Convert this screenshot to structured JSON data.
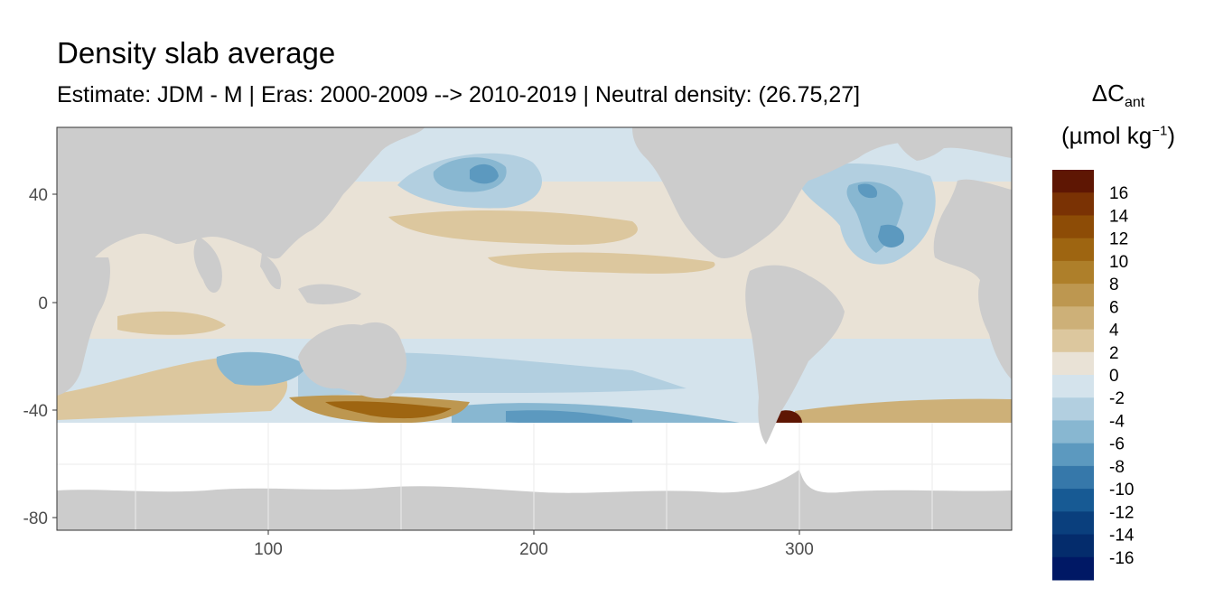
{
  "title": "Density slab average",
  "subtitle": "Estimate: JDM - M | Eras: 2000-2009 --> 2010-2019 | Neutral density: (26.75,27]",
  "legend": {
    "title_main": "ΔC",
    "title_sub": "ant",
    "unit_prefix": "(µmol kg",
    "unit_sup": "−1",
    "unit_suffix": ")",
    "levels": [
      "16",
      "14",
      "12",
      "10",
      "8",
      "6",
      "4",
      "2",
      "0",
      "-2",
      "-4",
      "-6",
      "-8",
      "-10",
      "-12",
      "-14",
      "-16"
    ],
    "colors": [
      "#5e1603",
      "#7a3204",
      "#8d4c06",
      "#9e6511",
      "#ae7f2a",
      "#bd9750",
      "#cdb078",
      "#dcc79e",
      "#e9e2d6",
      "#d4e3ec",
      "#b2cfe0",
      "#88b7d1",
      "#5c99bf",
      "#3678aa",
      "#175a94",
      "#0a3f7d",
      "#042c6c",
      "#001865"
    ],
    "color_land": "#cccccc",
    "color_ocean": "#ffffff"
  },
  "axes": {
    "x_ticks": [
      "100",
      "200",
      "300"
    ],
    "y_ticks": [
      "40",
      "0",
      "-40",
      "-80"
    ]
  },
  "chart_data": {
    "type": "heatmap",
    "xlim": [
      20,
      380
    ],
    "ylim": [
      -85,
      65
    ],
    "x_ticks": [
      100,
      200,
      300
    ],
    "y_ticks": [
      40,
      0,
      -40,
      -80
    ],
    "grid": true,
    "legend_position": "right"
  }
}
